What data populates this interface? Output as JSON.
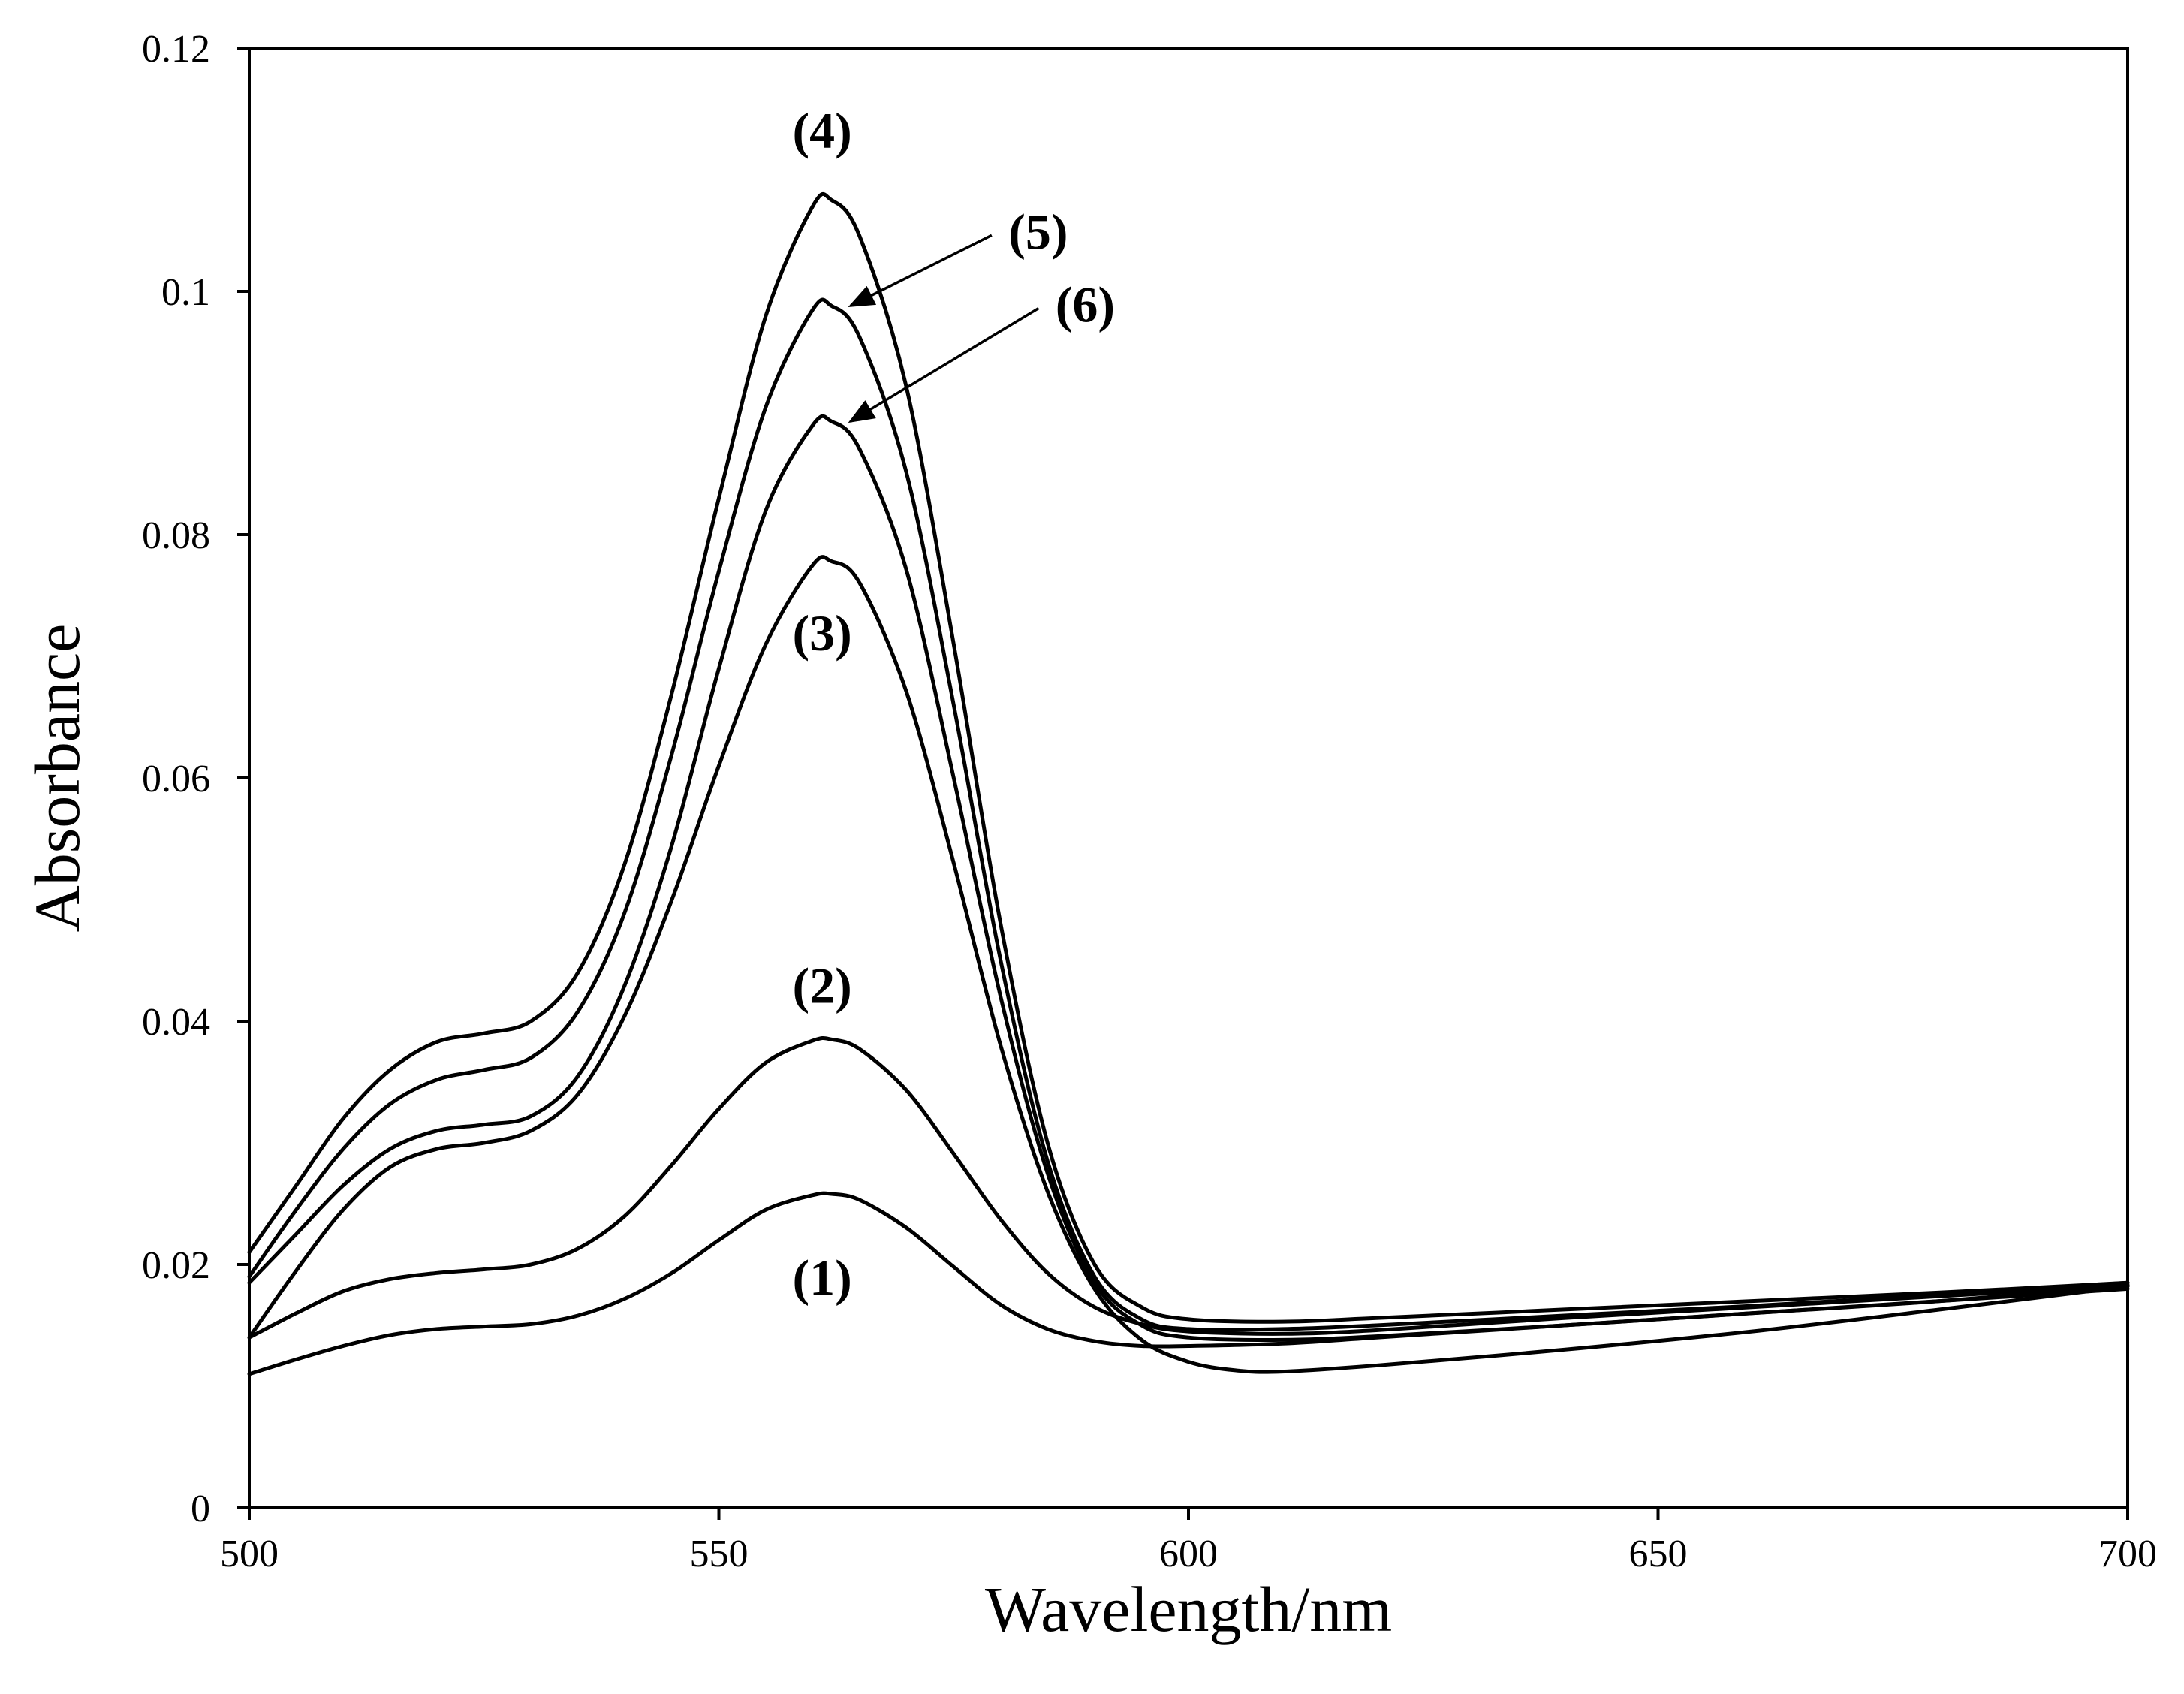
{
  "chart_data": {
    "type": "line",
    "title": "",
    "xlabel": "Wavelength/nm",
    "ylabel": "Absorbance",
    "xlim": [
      500,
      700
    ],
    "ylim": [
      0,
      0.12
    ],
    "grid": false,
    "legend": "none",
    "x_ticks": [
      500,
      550,
      600,
      650,
      700
    ],
    "x_tick_labels": [
      "500",
      "550",
      "600",
      "650",
      "700"
    ],
    "y_ticks": [
      0,
      0.02,
      0.04,
      0.06,
      0.08,
      0.1,
      0.12
    ],
    "y_tick_labels": [
      "0",
      "0.02",
      "0.04",
      "0.06",
      "0.08",
      "0.1",
      "0.12"
    ],
    "series": [
      {
        "name": "(1)",
        "points": [
          [
            500,
            0.011
          ],
          [
            505,
            0.0122
          ],
          [
            510,
            0.0133
          ],
          [
            515,
            0.0142
          ],
          [
            520,
            0.0147
          ],
          [
            525,
            0.0149
          ],
          [
            530,
            0.0151
          ],
          [
            535,
            0.0158
          ],
          [
            540,
            0.0172
          ],
          [
            545,
            0.0193
          ],
          [
            550,
            0.022
          ],
          [
            555,
            0.0245
          ],
          [
            560,
            0.0257
          ],
          [
            562,
            0.0258
          ],
          [
            565,
            0.0253
          ],
          [
            570,
            0.023
          ],
          [
            575,
            0.0198
          ],
          [
            580,
            0.0167
          ],
          [
            585,
            0.0147
          ],
          [
            590,
            0.0137
          ],
          [
            595,
            0.0133
          ],
          [
            600,
            0.0133
          ],
          [
            610,
            0.0135
          ],
          [
            620,
            0.014
          ],
          [
            640,
            0.015
          ],
          [
            660,
            0.016
          ],
          [
            680,
            0.017
          ],
          [
            700,
            0.018
          ]
        ]
      },
      {
        "name": "(2)",
        "points": [
          [
            500,
            0.014
          ],
          [
            505,
            0.016
          ],
          [
            510,
            0.0178
          ],
          [
            515,
            0.0188
          ],
          [
            520,
            0.0193
          ],
          [
            525,
            0.0196
          ],
          [
            530,
            0.02
          ],
          [
            535,
            0.0213
          ],
          [
            540,
            0.024
          ],
          [
            545,
            0.0282
          ],
          [
            550,
            0.0328
          ],
          [
            555,
            0.0366
          ],
          [
            560,
            0.0384
          ],
          [
            562,
            0.0385
          ],
          [
            565,
            0.0377
          ],
          [
            570,
            0.0343
          ],
          [
            575,
            0.0291
          ],
          [
            580,
            0.0237
          ],
          [
            585,
            0.0193
          ],
          [
            590,
            0.0165
          ],
          [
            595,
            0.0151
          ],
          [
            600,
            0.0145
          ],
          [
            610,
            0.0143
          ],
          [
            620,
            0.0146
          ],
          [
            640,
            0.0156
          ],
          [
            660,
            0.0165
          ],
          [
            680,
            0.0174
          ],
          [
            700,
            0.0183
          ]
        ]
      },
      {
        "name": "(3)",
        "points": [
          [
            500,
            0.014
          ],
          [
            505,
            0.0195
          ],
          [
            510,
            0.0245
          ],
          [
            515,
            0.028
          ],
          [
            520,
            0.0295
          ],
          [
            525,
            0.03
          ],
          [
            530,
            0.031
          ],
          [
            535,
            0.034
          ],
          [
            540,
            0.0405
          ],
          [
            545,
            0.05
          ],
          [
            550,
            0.061
          ],
          [
            555,
            0.071
          ],
          [
            560,
            0.0775
          ],
          [
            562,
            0.0778
          ],
          [
            565,
            0.076
          ],
          [
            570,
            0.067
          ],
          [
            575,
            0.053
          ],
          [
            580,
            0.038
          ],
          [
            585,
            0.026
          ],
          [
            590,
            0.018
          ],
          [
            595,
            0.0138
          ],
          [
            600,
            0.012
          ],
          [
            605,
            0.0113
          ],
          [
            610,
            0.0112
          ],
          [
            620,
            0.0117
          ],
          [
            640,
            0.013
          ],
          [
            660,
            0.0145
          ],
          [
            680,
            0.0163
          ],
          [
            700,
            0.0182
          ]
        ]
      },
      {
        "name": "(4)",
        "points": [
          [
            500,
            0.021
          ],
          [
            505,
            0.0265
          ],
          [
            510,
            0.032
          ],
          [
            515,
            0.036
          ],
          [
            520,
            0.0383
          ],
          [
            525,
            0.039
          ],
          [
            530,
            0.04
          ],
          [
            535,
            0.044
          ],
          [
            540,
            0.053
          ],
          [
            545,
            0.067
          ],
          [
            550,
            0.083
          ],
          [
            555,
            0.098
          ],
          [
            560,
            0.107
          ],
          [
            562,
            0.1075
          ],
          [
            565,
            0.1045
          ],
          [
            570,
            0.092
          ],
          [
            575,
            0.071
          ],
          [
            580,
            0.048
          ],
          [
            585,
            0.03
          ],
          [
            590,
            0.02
          ],
          [
            595,
            0.0165
          ],
          [
            600,
            0.0155
          ],
          [
            610,
            0.0153
          ],
          [
            620,
            0.0156
          ],
          [
            640,
            0.0163
          ],
          [
            660,
            0.017
          ],
          [
            680,
            0.0177
          ],
          [
            700,
            0.0185
          ]
        ]
      },
      {
        "name": "(5)",
        "points": [
          [
            500,
            0.019
          ],
          [
            505,
            0.0245
          ],
          [
            510,
            0.0295
          ],
          [
            515,
            0.0332
          ],
          [
            520,
            0.0352
          ],
          [
            525,
            0.036
          ],
          [
            530,
            0.037
          ],
          [
            535,
            0.0408
          ],
          [
            540,
            0.049
          ],
          [
            545,
            0.062
          ],
          [
            550,
            0.077
          ],
          [
            555,
            0.0905
          ],
          [
            560,
            0.0985
          ],
          [
            562,
            0.0988
          ],
          [
            565,
            0.0962
          ],
          [
            570,
            0.085
          ],
          [
            575,
            0.066
          ],
          [
            580,
            0.045
          ],
          [
            585,
            0.0285
          ],
          [
            590,
            0.019
          ],
          [
            595,
            0.0155
          ],
          [
            600,
            0.0147
          ],
          [
            610,
            0.0147
          ],
          [
            620,
            0.015
          ],
          [
            640,
            0.0158
          ],
          [
            660,
            0.0166
          ],
          [
            680,
            0.0175
          ],
          [
            700,
            0.0185
          ]
        ]
      },
      {
        "name": "(6)",
        "points": [
          [
            500,
            0.0185
          ],
          [
            505,
            0.0225
          ],
          [
            510,
            0.0265
          ],
          [
            515,
            0.0295
          ],
          [
            520,
            0.031
          ],
          [
            525,
            0.0315
          ],
          [
            530,
            0.0322
          ],
          [
            535,
            0.0355
          ],
          [
            540,
            0.043
          ],
          [
            545,
            0.0545
          ],
          [
            550,
            0.069
          ],
          [
            555,
            0.082
          ],
          [
            560,
            0.089
          ],
          [
            562,
            0.0893
          ],
          [
            565,
            0.087
          ],
          [
            570,
            0.077
          ],
          [
            575,
            0.06
          ],
          [
            580,
            0.042
          ],
          [
            585,
            0.0275
          ],
          [
            590,
            0.0185
          ],
          [
            595,
            0.015
          ],
          [
            600,
            0.014
          ],
          [
            610,
            0.0138
          ],
          [
            620,
            0.0141
          ],
          [
            640,
            0.015
          ],
          [
            660,
            0.016
          ],
          [
            680,
            0.017
          ],
          [
            700,
            0.0183
          ]
        ]
      }
    ],
    "annotations": [
      {
        "text": "(1)",
        "x": 561,
        "y": 0.0175,
        "arrow": false
      },
      {
        "text": "(2)",
        "x": 561,
        "y": 0.0415,
        "arrow": false
      },
      {
        "text": "(3)",
        "x": 561,
        "y": 0.0705,
        "arrow": false
      },
      {
        "text": "(4)",
        "x": 561,
        "y": 0.1118,
        "arrow": false
      },
      {
        "text": "(5)",
        "x": 584,
        "y": 0.1035,
        "arrow": true,
        "arrow_to": [
          564,
          0.0988
        ]
      },
      {
        "text": "(6)",
        "x": 589,
        "y": 0.0975,
        "arrow": true,
        "arrow_to": [
          564,
          0.0893
        ]
      }
    ]
  }
}
